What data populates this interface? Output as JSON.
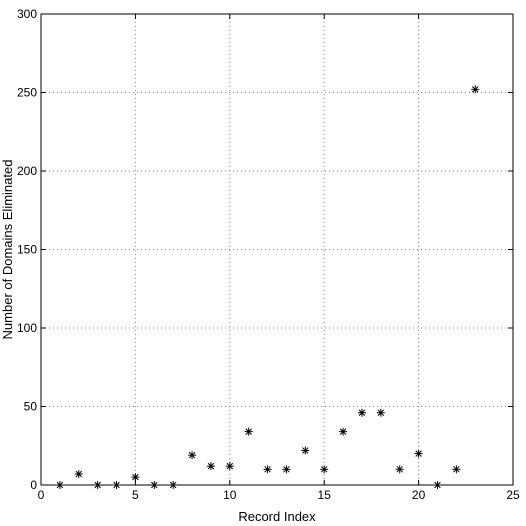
{
  "chart_data": {
    "type": "scatter",
    "title": "",
    "xlabel": "Record Index",
    "ylabel": "Number of Domains Eliminated",
    "xlim": [
      0,
      25
    ],
    "ylim": [
      0,
      300
    ],
    "xticks": [
      0,
      5,
      10,
      15,
      20,
      25
    ],
    "yticks": [
      0,
      50,
      100,
      150,
      200,
      250,
      300
    ],
    "grid": true,
    "marker": "asterisk",
    "marker_color": "#000000",
    "series": [
      {
        "x": [
          1,
          2,
          3,
          4,
          5,
          6,
          7,
          8,
          9,
          10,
          11,
          12,
          13,
          14,
          15,
          16,
          17,
          18,
          19,
          20,
          21,
          22,
          23
        ],
        "y": [
          0,
          7,
          0,
          0,
          5,
          0,
          0,
          19,
          12,
          12,
          34,
          10,
          10,
          22,
          10,
          34,
          46,
          46,
          10,
          20,
          0,
          10,
          252
        ]
      }
    ]
  }
}
